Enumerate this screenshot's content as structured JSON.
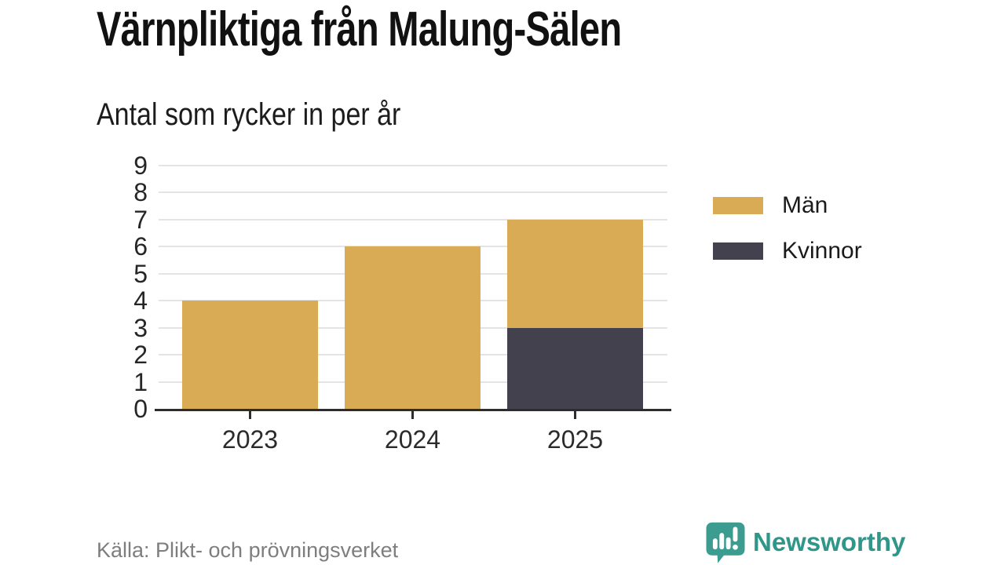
{
  "header": {
    "title": "Värnpliktiga från Malung-Sälen",
    "subtitle": "Antal som rycker in per år"
  },
  "chart_data": {
    "type": "bar",
    "stacked": true,
    "title": "Värnpliktiga från Malung-Sälen",
    "subtitle": "Antal som rycker in per år",
    "categories": [
      "2023",
      "2024",
      "2025"
    ],
    "series": [
      {
        "name": "Män",
        "color": "#D9AB55",
        "values": [
          4,
          6,
          4
        ]
      },
      {
        "name": "Kvinnor",
        "color": "#43414E",
        "values": [
          0,
          0,
          3
        ]
      }
    ],
    "stack_bottom_to_top": [
      "Kvinnor",
      "Män"
    ],
    "totals": [
      4,
      6,
      7
    ],
    "xlabel": "",
    "ylabel": "",
    "ylim": [
      0,
      9
    ],
    "yticks": [
      0,
      1,
      2,
      3,
      4,
      5,
      6,
      7,
      8,
      9
    ],
    "grid": true,
    "legend_position": "right"
  },
  "footer": {
    "source": "Källa: Plikt- och prövningsverket",
    "brand": "Newsworthy",
    "brand_color": "#2F968A",
    "brand_icon_color": "#3B9C8F"
  }
}
